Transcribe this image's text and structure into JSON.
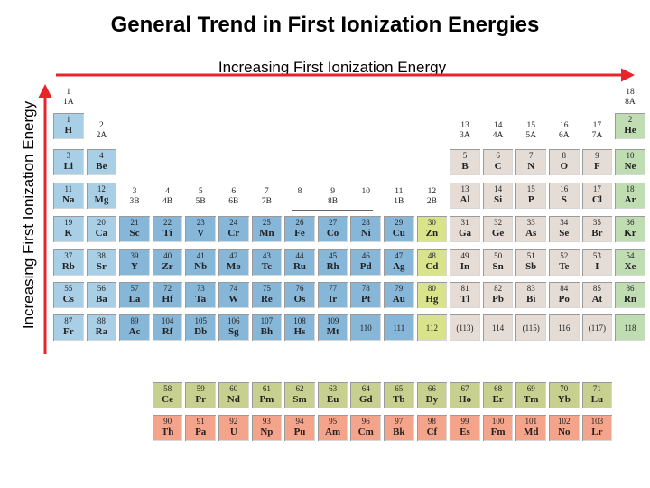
{
  "title": "General Trend in First Ionization Energies",
  "horizontal_label": "Increasing First Ionization Energy",
  "vertical_label": "Increasing First Ionization Energy",
  "colors": {
    "arrow": "#e8232a",
    "s_block": "#a9cfe6",
    "d_block": "#86b6d8",
    "group12": "#d9e48a",
    "p_block": "#e5dcd6",
    "noble": "#bfdcb2",
    "lanthanide": "#c7d08f",
    "actinide": "#f4a48a"
  },
  "group_labels": [
    {
      "col": 1,
      "num": "1",
      "sub": "1A"
    },
    {
      "col": 2,
      "num": "2",
      "sub": "2A"
    },
    {
      "col": 3,
      "num": "3",
      "sub": "3B"
    },
    {
      "col": 4,
      "num": "4",
      "sub": "4B"
    },
    {
      "col": 5,
      "num": "5",
      "sub": "5B"
    },
    {
      "col": 6,
      "num": "6",
      "sub": "6B"
    },
    {
      "col": 7,
      "num": "7",
      "sub": "7B"
    },
    {
      "col": 8,
      "num": "8",
      "sub": ""
    },
    {
      "col": 9,
      "num": "9",
      "sub": "8B"
    },
    {
      "col": 10,
      "num": "10",
      "sub": ""
    },
    {
      "col": 11,
      "num": "11",
      "sub": "1B"
    },
    {
      "col": 12,
      "num": "12",
      "sub": "2B"
    },
    {
      "col": 13,
      "num": "13",
      "sub": "3A"
    },
    {
      "col": 14,
      "num": "14",
      "sub": "4A"
    },
    {
      "col": 15,
      "num": "15",
      "sub": "5A"
    },
    {
      "col": 16,
      "num": "16",
      "sub": "6A"
    },
    {
      "col": 17,
      "num": "17",
      "sub": "7A"
    },
    {
      "col": 18,
      "num": "18",
      "sub": "8A"
    }
  ],
  "main_elements": [
    {
      "n": "1",
      "s": "H",
      "r": 1,
      "c": 1
    },
    {
      "n": "2",
      "s": "He",
      "r": 1,
      "c": 18
    },
    {
      "n": "3",
      "s": "Li",
      "r": 2,
      "c": 1
    },
    {
      "n": "4",
      "s": "Be",
      "r": 2,
      "c": 2
    },
    {
      "n": "5",
      "s": "B",
      "r": 2,
      "c": 13
    },
    {
      "n": "6",
      "s": "C",
      "r": 2,
      "c": 14
    },
    {
      "n": "7",
      "s": "N",
      "r": 2,
      "c": 15
    },
    {
      "n": "8",
      "s": "O",
      "r": 2,
      "c": 16
    },
    {
      "n": "9",
      "s": "F",
      "r": 2,
      "c": 17
    },
    {
      "n": "10",
      "s": "Ne",
      "r": 2,
      "c": 18
    },
    {
      "n": "11",
      "s": "Na",
      "r": 3,
      "c": 1
    },
    {
      "n": "12",
      "s": "Mg",
      "r": 3,
      "c": 2
    },
    {
      "n": "13",
      "s": "Al",
      "r": 3,
      "c": 13
    },
    {
      "n": "14",
      "s": "Si",
      "r": 3,
      "c": 14
    },
    {
      "n": "15",
      "s": "P",
      "r": 3,
      "c": 15
    },
    {
      "n": "16",
      "s": "S",
      "r": 3,
      "c": 16
    },
    {
      "n": "17",
      "s": "Cl",
      "r": 3,
      "c": 17
    },
    {
      "n": "18",
      "s": "Ar",
      "r": 3,
      "c": 18
    },
    {
      "n": "19",
      "s": "K",
      "r": 4,
      "c": 1
    },
    {
      "n": "20",
      "s": "Ca",
      "r": 4,
      "c": 2
    },
    {
      "n": "21",
      "s": "Sc",
      "r": 4,
      "c": 3
    },
    {
      "n": "22",
      "s": "Ti",
      "r": 4,
      "c": 4
    },
    {
      "n": "23",
      "s": "V",
      "r": 4,
      "c": 5
    },
    {
      "n": "24",
      "s": "Cr",
      "r": 4,
      "c": 6
    },
    {
      "n": "25",
      "s": "Mn",
      "r": 4,
      "c": 7
    },
    {
      "n": "26",
      "s": "Fe",
      "r": 4,
      "c": 8
    },
    {
      "n": "27",
      "s": "Co",
      "r": 4,
      "c": 9
    },
    {
      "n": "28",
      "s": "Ni",
      "r": 4,
      "c": 10
    },
    {
      "n": "29",
      "s": "Cu",
      "r": 4,
      "c": 11
    },
    {
      "n": "30",
      "s": "Zn",
      "r": 4,
      "c": 12
    },
    {
      "n": "31",
      "s": "Ga",
      "r": 4,
      "c": 13
    },
    {
      "n": "32",
      "s": "Ge",
      "r": 4,
      "c": 14
    },
    {
      "n": "33",
      "s": "As",
      "r": 4,
      "c": 15
    },
    {
      "n": "34",
      "s": "Se",
      "r": 4,
      "c": 16
    },
    {
      "n": "35",
      "s": "Br",
      "r": 4,
      "c": 17
    },
    {
      "n": "36",
      "s": "Kr",
      "r": 4,
      "c": 18
    },
    {
      "n": "37",
      "s": "Rb",
      "r": 5,
      "c": 1
    },
    {
      "n": "38",
      "s": "Sr",
      "r": 5,
      "c": 2
    },
    {
      "n": "39",
      "s": "Y",
      "r": 5,
      "c": 3
    },
    {
      "n": "40",
      "s": "Zr",
      "r": 5,
      "c": 4
    },
    {
      "n": "41",
      "s": "Nb",
      "r": 5,
      "c": 5
    },
    {
      "n": "42",
      "s": "Mo",
      "r": 5,
      "c": 6
    },
    {
      "n": "43",
      "s": "Tc",
      "r": 5,
      "c": 7
    },
    {
      "n": "44",
      "s": "Ru",
      "r": 5,
      "c": 8
    },
    {
      "n": "45",
      "s": "Rh",
      "r": 5,
      "c": 9
    },
    {
      "n": "46",
      "s": "Pd",
      "r": 5,
      "c": 10
    },
    {
      "n": "47",
      "s": "Ag",
      "r": 5,
      "c": 11
    },
    {
      "n": "48",
      "s": "Cd",
      "r": 5,
      "c": 12
    },
    {
      "n": "49",
      "s": "In",
      "r": 5,
      "c": 13
    },
    {
      "n": "50",
      "s": "Sn",
      "r": 5,
      "c": 14
    },
    {
      "n": "51",
      "s": "Sb",
      "r": 5,
      "c": 15
    },
    {
      "n": "52",
      "s": "Te",
      "r": 5,
      "c": 16
    },
    {
      "n": "53",
      "s": "I",
      "r": 5,
      "c": 17
    },
    {
      "n": "54",
      "s": "Xe",
      "r": 5,
      "c": 18
    },
    {
      "n": "55",
      "s": "Cs",
      "r": 6,
      "c": 1
    },
    {
      "n": "56",
      "s": "Ba",
      "r": 6,
      "c": 2
    },
    {
      "n": "57",
      "s": "La",
      "r": 6,
      "c": 3
    },
    {
      "n": "72",
      "s": "Hf",
      "r": 6,
      "c": 4
    },
    {
      "n": "73",
      "s": "Ta",
      "r": 6,
      "c": 5
    },
    {
      "n": "74",
      "s": "W",
      "r": 6,
      "c": 6
    },
    {
      "n": "75",
      "s": "Re",
      "r": 6,
      "c": 7
    },
    {
      "n": "76",
      "s": "Os",
      "r": 6,
      "c": 8
    },
    {
      "n": "77",
      "s": "Ir",
      "r": 6,
      "c": 9
    },
    {
      "n": "78",
      "s": "Pt",
      "r": 6,
      "c": 10
    },
    {
      "n": "79",
      "s": "Au",
      "r": 6,
      "c": 11
    },
    {
      "n": "80",
      "s": "Hg",
      "r": 6,
      "c": 12
    },
    {
      "n": "81",
      "s": "Tl",
      "r": 6,
      "c": 13
    },
    {
      "n": "82",
      "s": "Pb",
      "r": 6,
      "c": 14
    },
    {
      "n": "83",
      "s": "Bi",
      "r": 6,
      "c": 15
    },
    {
      "n": "84",
      "s": "Po",
      "r": 6,
      "c": 16
    },
    {
      "n": "85",
      "s": "At",
      "r": 6,
      "c": 17
    },
    {
      "n": "86",
      "s": "Rn",
      "r": 6,
      "c": 18
    },
    {
      "n": "87",
      "s": "Fr",
      "r": 7,
      "c": 1
    },
    {
      "n": "88",
      "s": "Ra",
      "r": 7,
      "c": 2
    },
    {
      "n": "89",
      "s": "Ac",
      "r": 7,
      "c": 3
    },
    {
      "n": "104",
      "s": "Rf",
      "r": 7,
      "c": 4
    },
    {
      "n": "105",
      "s": "Db",
      "r": 7,
      "c": 5
    },
    {
      "n": "106",
      "s": "Sg",
      "r": 7,
      "c": 6
    },
    {
      "n": "107",
      "s": "Bh",
      "r": 7,
      "c": 7
    },
    {
      "n": "108",
      "s": "Hs",
      "r": 7,
      "c": 8
    },
    {
      "n": "109",
      "s": "Mt",
      "r": 7,
      "c": 9
    },
    {
      "n": "110",
      "s": "",
      "r": 7,
      "c": 10
    },
    {
      "n": "111",
      "s": "",
      "r": 7,
      "c": 11
    },
    {
      "n": "112",
      "s": "",
      "r": 7,
      "c": 12
    },
    {
      "n": "(113)",
      "s": "",
      "r": 7,
      "c": 13
    },
    {
      "n": "114",
      "s": "",
      "r": 7,
      "c": 14
    },
    {
      "n": "(115)",
      "s": "",
      "r": 7,
      "c": 15
    },
    {
      "n": "116",
      "s": "",
      "r": 7,
      "c": 16
    },
    {
      "n": "(117)",
      "s": "",
      "r": 7,
      "c": 17
    },
    {
      "n": "118",
      "s": "",
      "r": 7,
      "c": 18
    }
  ],
  "lanthanides": [
    {
      "n": "58",
      "s": "Ce"
    },
    {
      "n": "59",
      "s": "Pr"
    },
    {
      "n": "60",
      "s": "Nd"
    },
    {
      "n": "61",
      "s": "Pm"
    },
    {
      "n": "62",
      "s": "Sm"
    },
    {
      "n": "63",
      "s": "Eu"
    },
    {
      "n": "64",
      "s": "Gd"
    },
    {
      "n": "65",
      "s": "Tb"
    },
    {
      "n": "66",
      "s": "Dy"
    },
    {
      "n": "67",
      "s": "Ho"
    },
    {
      "n": "68",
      "s": "Er"
    },
    {
      "n": "69",
      "s": "Tm"
    },
    {
      "n": "70",
      "s": "Yb"
    },
    {
      "n": "71",
      "s": "Lu"
    }
  ],
  "actinides": [
    {
      "n": "90",
      "s": "Th"
    },
    {
      "n": "91",
      "s": "Pa"
    },
    {
      "n": "92",
      "s": "U"
    },
    {
      "n": "93",
      "s": "Np"
    },
    {
      "n": "94",
      "s": "Pu"
    },
    {
      "n": "95",
      "s": "Am"
    },
    {
      "n": "96",
      "s": "Cm"
    },
    {
      "n": "97",
      "s": "Bk"
    },
    {
      "n": "98",
      "s": "Cf"
    },
    {
      "n": "99",
      "s": "Es"
    },
    {
      "n": "100",
      "s": "Fm"
    },
    {
      "n": "101",
      "s": "Md"
    },
    {
      "n": "102",
      "s": "No"
    },
    {
      "n": "103",
      "s": "Lr"
    }
  ]
}
